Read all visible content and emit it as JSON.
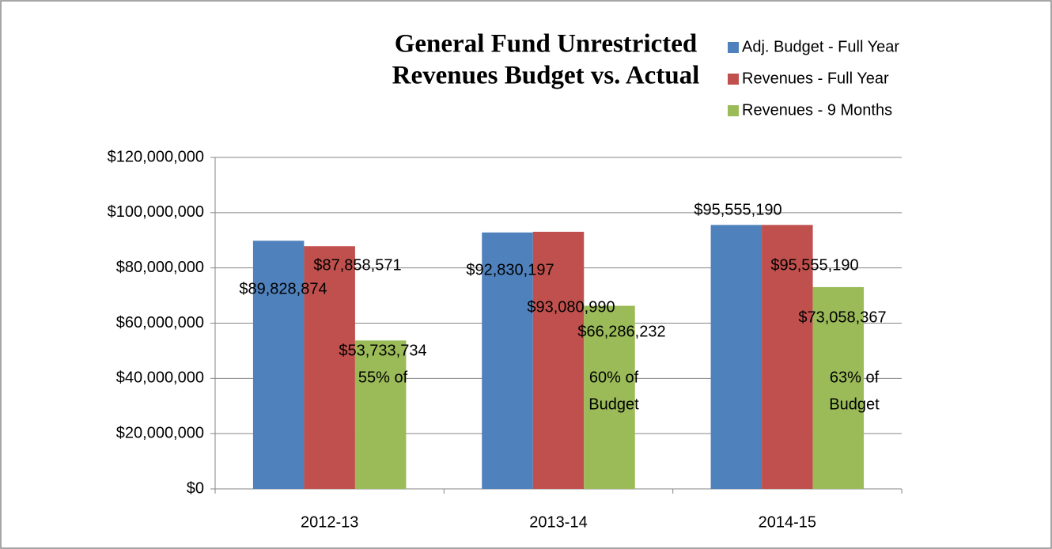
{
  "chart_data": {
    "type": "bar",
    "title": [
      "General Fund Unrestricted",
      "Revenues Budget vs. Actual"
    ],
    "categories": [
      "2012-13",
      "2013-14",
      "2014-15"
    ],
    "series": [
      {
        "name": "Adj. Budget - Full Year",
        "color": "#4f81bd",
        "values": [
          89828874,
          92830197,
          95555190
        ],
        "value_labels": [
          "$89,828,874",
          "$92,830,197",
          "$95,555,190"
        ]
      },
      {
        "name": "Revenues - Full Year",
        "color": "#c0504d",
        "values": [
          87858571,
          93080990,
          95555190
        ],
        "value_labels": [
          "$87,858,571",
          "$93,080,990",
          "$95,555,190"
        ]
      },
      {
        "name": "Revenues - 9 Months",
        "color": "#9bbb59",
        "values": [
          53733734,
          66286232,
          73058367
        ],
        "value_labels": [
          "$53,733,734",
          "$66,286,232",
          "$73,058,367"
        ]
      }
    ],
    "annotations": [
      [
        "55% of"
      ],
      [
        "60% of",
        "Budget"
      ],
      [
        "63% of",
        "Budget"
      ]
    ],
    "ylim": [
      0,
      120000000
    ],
    "yticks": [
      {
        "value": 0,
        "label": "$0"
      },
      {
        "value": 20000000,
        "label": "$20,000,000"
      },
      {
        "value": 40000000,
        "label": "$40,000,000"
      },
      {
        "value": 60000000,
        "label": "$60,000,000"
      },
      {
        "value": 80000000,
        "label": "$80,000,000"
      },
      {
        "value": 100000000,
        "label": "$100,000,000"
      },
      {
        "value": 120000000,
        "label": "$120,000,000"
      }
    ],
    "grid": true,
    "legend": "top-right"
  }
}
